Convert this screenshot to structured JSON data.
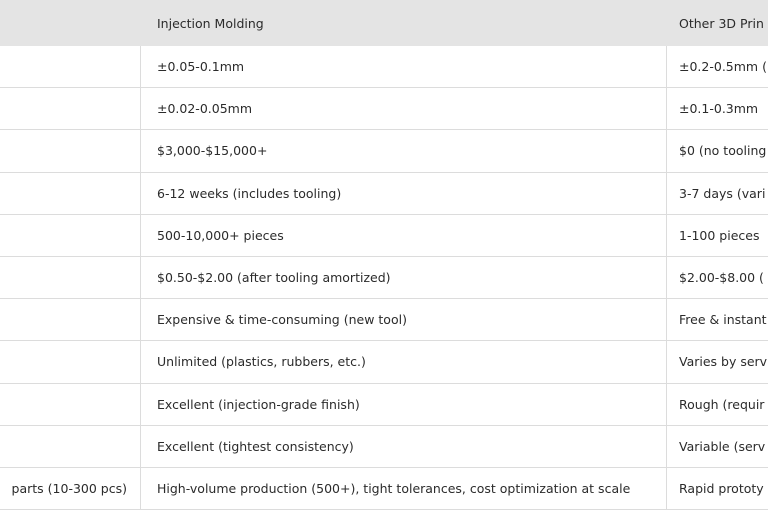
{
  "table": {
    "header": {
      "injection": "Injection Molding",
      "other": "Other 3D Prin"
    },
    "rows": [
      {
        "injection": "±0.05-0.1mm",
        "other": "±0.2-0.5mm ("
      },
      {
        "injection": "±0.02-0.05mm",
        "other": "±0.1-0.3mm"
      },
      {
        "injection": "$3,000-$15,000+",
        "other": "$0 (no tooling"
      },
      {
        "injection": "6-12 weeks (includes tooling)",
        "other": "3-7 days (vari"
      },
      {
        "injection": "500-10,000+ pieces",
        "other": "1-100 pieces"
      },
      {
        "injection": "$0.50-$2.00 (after tooling amortized)",
        "other": "$2.00-$8.00 ("
      },
      {
        "injection": "Expensive & time-consuming (new tool)",
        "other": "Free & instant"
      },
      {
        "injection": "Unlimited (plastics, rubbers, etc.)",
        "other": "Varies by serv"
      },
      {
        "injection": "Excellent (injection-grade finish)",
        "other": "Rough (requir"
      },
      {
        "injection": "Excellent (tightest consistency)",
        "other": "Variable (serv"
      },
      {
        "first": "parts (10-300 pcs)",
        "injection": "High-volume production (500+), tight tolerances, cost optimization at scale",
        "other": "Rapid prototy"
      }
    ]
  }
}
